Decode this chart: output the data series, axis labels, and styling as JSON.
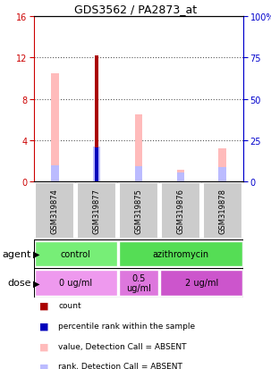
{
  "title": "GDS3562 / PA2873_at",
  "samples": [
    "GSM319874",
    "GSM319877",
    "GSM319875",
    "GSM319876",
    "GSM319878"
  ],
  "left_ylim": [
    0,
    16
  ],
  "right_ylim": [
    0,
    100
  ],
  "left_yticks": [
    0,
    4,
    8,
    12,
    16
  ],
  "right_yticks": [
    0,
    25,
    50,
    75,
    100
  ],
  "right_yticklabels": [
    "0",
    "25",
    "50",
    "75",
    "100%"
  ],
  "count_values": [
    0,
    12.2,
    0,
    0,
    0
  ],
  "percentile_values": [
    0,
    3.3,
    0,
    0,
    0
  ],
  "value_absent": [
    10.5,
    0,
    6.5,
    1.1,
    3.2
  ],
  "rank_absent": [
    1.6,
    3.35,
    1.5,
    0.85,
    1.4
  ],
  "count_color": "#aa0000",
  "percentile_color": "#0000bb",
  "value_absent_color": "#ffbbbb",
  "rank_absent_color": "#bbbbff",
  "agent_control_color": "#77ee77",
  "agent_azithromycin_color": "#55dd55",
  "dose_0_color": "#ee99ee",
  "dose_05_color": "#dd77dd",
  "dose_2_color": "#cc55cc",
  "sample_label_bg": "#cccccc",
  "grid_color": "#555555",
  "left_axis_color": "#cc0000",
  "right_axis_color": "#0000cc",
  "legend_items": [
    {
      "label": "count",
      "color": "#aa0000"
    },
    {
      "label": "percentile rank within the sample",
      "color": "#0000bb"
    },
    {
      "label": "value, Detection Call = ABSENT",
      "color": "#ffbbbb"
    },
    {
      "label": "rank, Detection Call = ABSENT",
      "color": "#bbbbff"
    }
  ]
}
